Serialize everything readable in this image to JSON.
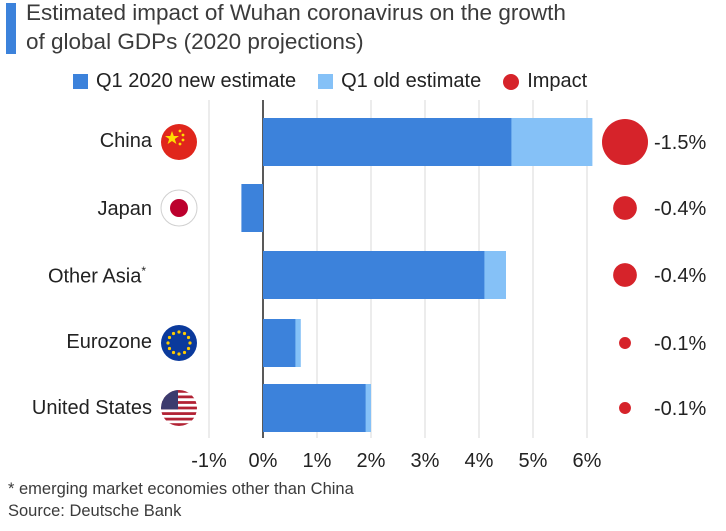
{
  "title": {
    "line1": "Estimated impact of Wuhan coronavirus on the growth",
    "line2": "of global GDPs (2020 projections)"
  },
  "legend": {
    "new_label": "Q1 2020 new estimate",
    "old_label": "Q1 old estimate",
    "impact_label": "Impact"
  },
  "colors": {
    "new": "#3c82db",
    "old": "#85c1f7",
    "impact": "#d6232a",
    "accent": "#3c82db"
  },
  "chart_data": {
    "type": "bar",
    "orientation": "horizontal",
    "categories": [
      "China",
      "Japan",
      "Other Asia",
      "Eurozone",
      "United States"
    ],
    "category_footnote": [
      "",
      "",
      "*",
      "",
      ""
    ],
    "flags": [
      "china-flag-icon",
      "japan-flag-icon",
      "",
      "eu-flag-icon",
      "us-flag-icon"
    ],
    "series": [
      {
        "name": "Q1 2020 new estimate",
        "values": [
          4.6,
          -0.4,
          4.1,
          0.6,
          1.9
        ]
      },
      {
        "name": "Q1 old estimate",
        "values": [
          6.1,
          0.0,
          4.5,
          0.7,
          2.0
        ]
      }
    ],
    "impact": {
      "name": "Impact",
      "values": [
        -1.5,
        -0.4,
        -0.4,
        -0.1,
        -0.1
      ],
      "labels": [
        "-1.5%",
        "-0.4%",
        "-0.4%",
        "-0.1%",
        "-0.1%"
      ]
    },
    "xlim": [
      -1,
      6
    ],
    "xticks": [
      -1,
      0,
      1,
      2,
      3,
      4,
      5,
      6
    ],
    "xtick_labels": [
      "-1%",
      "0%",
      "1%",
      "2%",
      "3%",
      "4%",
      "5%",
      "6%"
    ],
    "xlabel": "",
    "ylabel": "",
    "grid": true
  },
  "footer": {
    "note": "* emerging market economies other than China",
    "source": "Source: Deutsche Bank"
  }
}
